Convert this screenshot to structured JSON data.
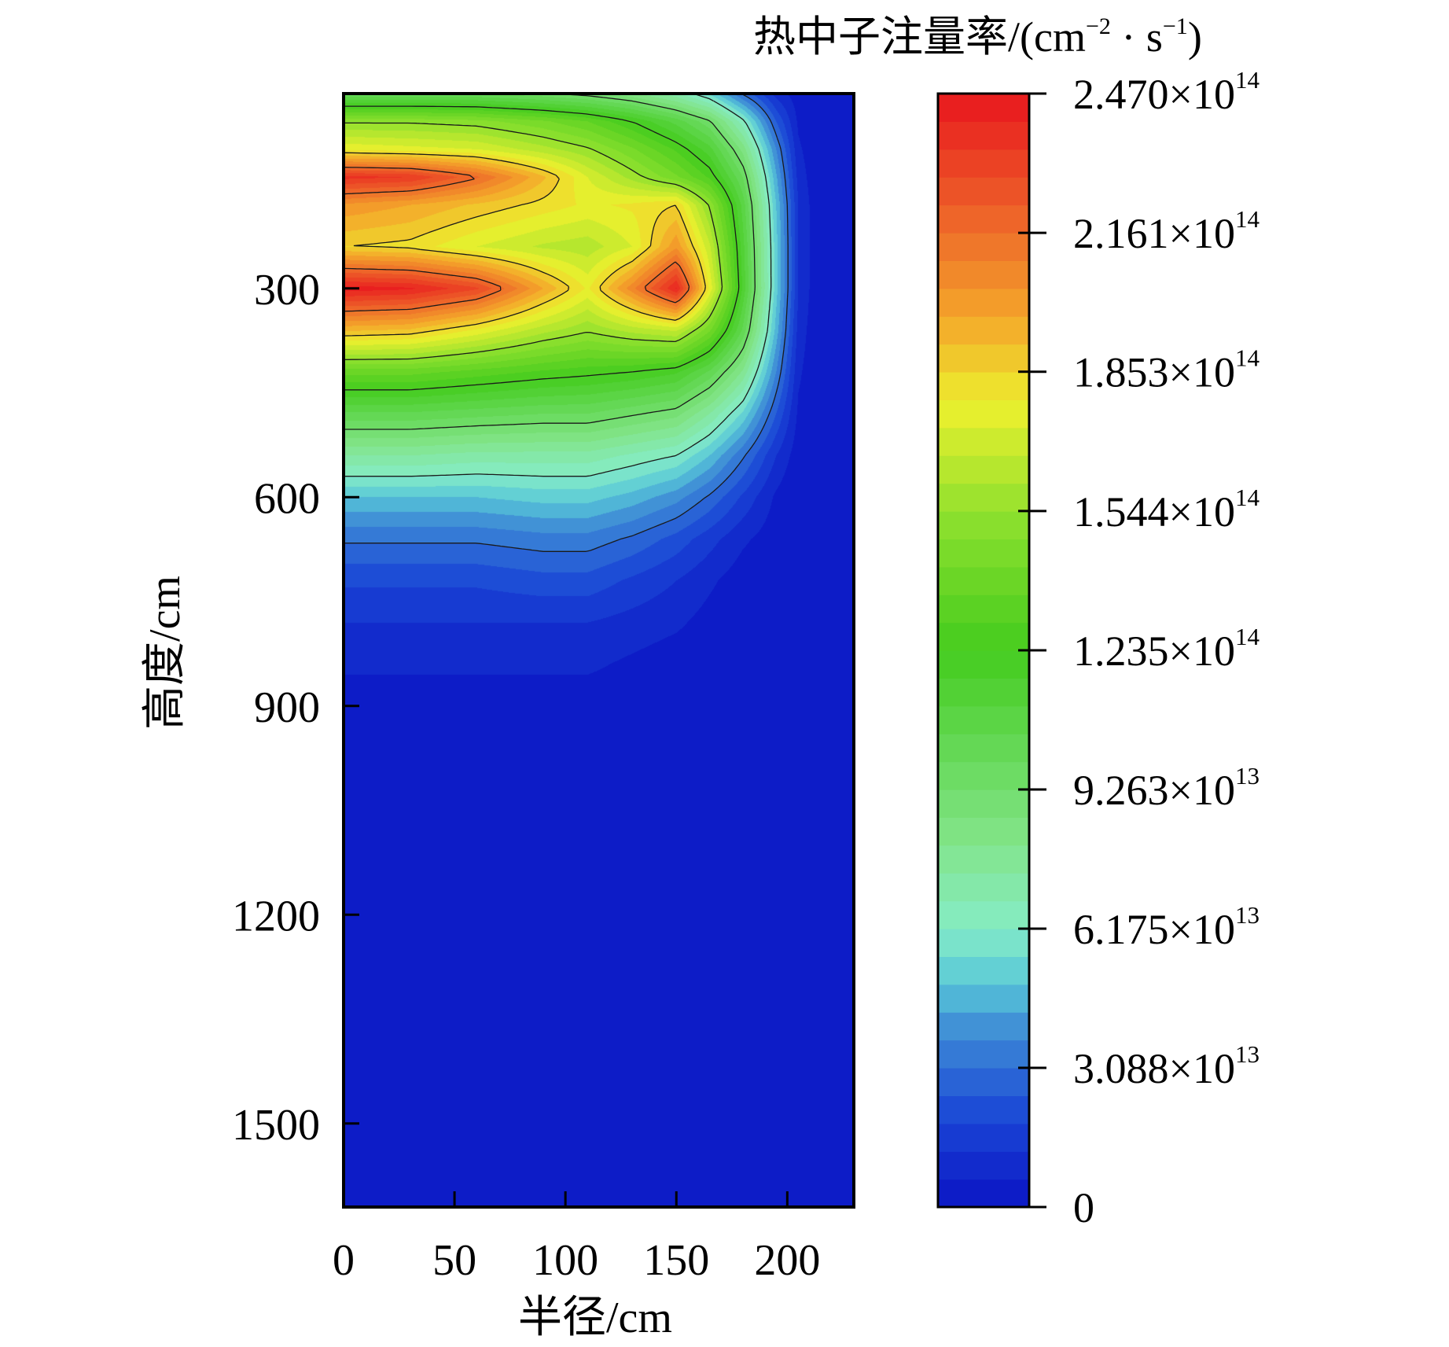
{
  "chart_data": {
    "type": "heatmap",
    "subtype": "filled-contour",
    "title": "",
    "xlabel": "半径/cm",
    "ylabel": "高度/cm",
    "xlim": [
      0,
      230
    ],
    "ylim": [
      1620,
      20
    ],
    "y_axis_inverted": true,
    "x_ticks": [
      0,
      50,
      100,
      150,
      200
    ],
    "x_tick_labels": [
      "0",
      "50",
      "100",
      "150",
      "200"
    ],
    "y_ticks": [
      300,
      600,
      900,
      1200,
      1500
    ],
    "y_tick_labels": [
      "300",
      "600",
      "900",
      "1200",
      "1500"
    ],
    "colorbar": {
      "title": "热中子注量率/(cm",
      "title_sup_1": "−2",
      "title_mid": " · s",
      "title_sup_2": "−1",
      "title_end": ")",
      "min": 0,
      "max": 247000000000000.0,
      "ticks": [
        {
          "value": 247000000000000.0,
          "mantissa": "2.470",
          "times": "×10",
          "exponent": "14"
        },
        {
          "value": 216100000000000.0,
          "mantissa": "2.161",
          "times": "×10",
          "exponent": "14"
        },
        {
          "value": 185300000000000.0,
          "mantissa": "1.853",
          "times": "×10",
          "exponent": "14"
        },
        {
          "value": 154400000000000.0,
          "mantissa": "1.544",
          "times": "×10",
          "exponent": "14"
        },
        {
          "value": 123500000000000.0,
          "mantissa": "1.235",
          "times": "×10",
          "exponent": "14"
        },
        {
          "value": 92630000000000.0,
          "mantissa": "9.263",
          "times": "×10",
          "exponent": "13"
        },
        {
          "value": 61750000000000.0,
          "mantissa": "6.175",
          "times": "×10",
          "exponent": "13"
        },
        {
          "value": 30880000000000.0,
          "mantissa": "3.088",
          "times": "×10",
          "exponent": "13"
        },
        {
          "value": 0,
          "mantissa": "0",
          "times": "",
          "exponent": ""
        }
      ],
      "color_stops": [
        {
          "t": 0.0,
          "color": "#0a14c4"
        },
        {
          "t": 0.08,
          "color": "#1a46d6"
        },
        {
          "t": 0.16,
          "color": "#3f8ed6"
        },
        {
          "t": 0.2,
          "color": "#58c6d8"
        },
        {
          "t": 0.25,
          "color": "#86ecc6"
        },
        {
          "t": 0.33,
          "color": "#82e488"
        },
        {
          "t": 0.5,
          "color": "#44cc1e"
        },
        {
          "t": 0.62,
          "color": "#8ee02e"
        },
        {
          "t": 0.72,
          "color": "#ecf02e"
        },
        {
          "t": 0.8,
          "color": "#f4a52a"
        },
        {
          "t": 0.88,
          "color": "#ee6a2a"
        },
        {
          "t": 1.0,
          "color": "#e8161e"
        }
      ]
    },
    "field_description": "Thermal neutron fluence rate vs. radius (x) and height (y); peaks ~2.47e14 near height ~300 cm at r = 0–60 and near r ≈ 155, secondary peak at height ~150 cm; falls to ~0 below height ~900 cm and beyond r ≈ 210 cm.",
    "field_params": {
      "profile_r": [
        0,
        30,
        60,
        90,
        110,
        130,
        150,
        165,
        180,
        195,
        205,
        215,
        230
      ],
      "profile_z": [
        20,
        60,
        100,
        140,
        180,
        240,
        300,
        360,
        420,
        480,
        540,
        600,
        660,
        720,
        780,
        840,
        900,
        1000,
        1620
      ],
      "grid": [
        [
          0.4,
          0.4,
          0.4,
          0.38,
          0.36,
          0.33,
          0.28,
          0.22,
          0.12,
          0.04,
          0.01,
          0.0,
          0.0
        ],
        [
          0.62,
          0.62,
          0.61,
          0.58,
          0.55,
          0.5,
          0.44,
          0.38,
          0.26,
          0.1,
          0.02,
          0.0,
          0.0
        ],
        [
          0.72,
          0.71,
          0.7,
          0.66,
          0.63,
          0.58,
          0.52,
          0.46,
          0.34,
          0.15,
          0.03,
          0.0,
          0.0
        ],
        [
          0.96,
          0.95,
          0.88,
          0.78,
          0.7,
          0.64,
          0.58,
          0.52,
          0.4,
          0.18,
          0.04,
          0.0,
          0.0
        ],
        [
          0.82,
          0.8,
          0.77,
          0.74,
          0.72,
          0.73,
          0.75,
          0.62,
          0.44,
          0.2,
          0.05,
          0.0,
          0.0
        ],
        [
          0.75,
          0.74,
          0.7,
          0.67,
          0.66,
          0.7,
          0.82,
          0.68,
          0.46,
          0.21,
          0.05,
          0.0,
          0.0
        ],
        [
          0.99,
          0.98,
          0.93,
          0.8,
          0.72,
          0.84,
          0.98,
          0.72,
          0.47,
          0.21,
          0.05,
          0.0,
          0.0
        ],
        [
          0.78,
          0.77,
          0.72,
          0.66,
          0.63,
          0.66,
          0.68,
          0.58,
          0.42,
          0.19,
          0.04,
          0.0,
          0.0
        ],
        [
          0.56,
          0.56,
          0.54,
          0.52,
          0.51,
          0.5,
          0.48,
          0.42,
          0.32,
          0.15,
          0.03,
          0.0,
          0.0
        ],
        [
          0.42,
          0.42,
          0.41,
          0.4,
          0.4,
          0.38,
          0.36,
          0.3,
          0.22,
          0.1,
          0.02,
          0.0,
          0.0
        ],
        [
          0.3,
          0.3,
          0.29,
          0.29,
          0.29,
          0.27,
          0.25,
          0.2,
          0.13,
          0.05,
          0.01,
          0.0,
          0.0
        ],
        [
          0.2,
          0.2,
          0.2,
          0.21,
          0.21,
          0.19,
          0.16,
          0.12,
          0.07,
          0.02,
          0.0,
          0.0,
          0.0
        ],
        [
          0.13,
          0.13,
          0.13,
          0.14,
          0.14,
          0.12,
          0.09,
          0.06,
          0.03,
          0.01,
          0.0,
          0.0,
          0.0
        ],
        [
          0.08,
          0.08,
          0.08,
          0.09,
          0.09,
          0.07,
          0.05,
          0.03,
          0.01,
          0.0,
          0.0,
          0.0,
          0.0
        ],
        [
          0.05,
          0.05,
          0.05,
          0.05,
          0.05,
          0.04,
          0.03,
          0.015,
          0.005,
          0.0,
          0.0,
          0.0,
          0.0
        ],
        [
          0.03,
          0.03,
          0.03,
          0.03,
          0.03,
          0.02,
          0.01,
          0.005,
          0.0,
          0.0,
          0.0,
          0.0,
          0.0
        ],
        [
          0.01,
          0.01,
          0.01,
          0.01,
          0.01,
          0.01,
          0.005,
          0.0,
          0.0,
          0.0,
          0.0,
          0.0,
          0.0
        ],
        [
          0.0,
          0.0,
          0.0,
          0.0,
          0.0,
          0.0,
          0.0,
          0.0,
          0.0,
          0.0,
          0.0,
          0.0,
          0.0
        ],
        [
          0.0,
          0.0,
          0.0,
          0.0,
          0.0,
          0.0,
          0.0,
          0.0,
          0.0,
          0.0,
          0.0,
          0.0,
          0.0
        ]
      ],
      "contour_levels": [
        0.125,
        0.25,
        0.375,
        0.5,
        0.625,
        0.75,
        0.875
      ]
    }
  }
}
